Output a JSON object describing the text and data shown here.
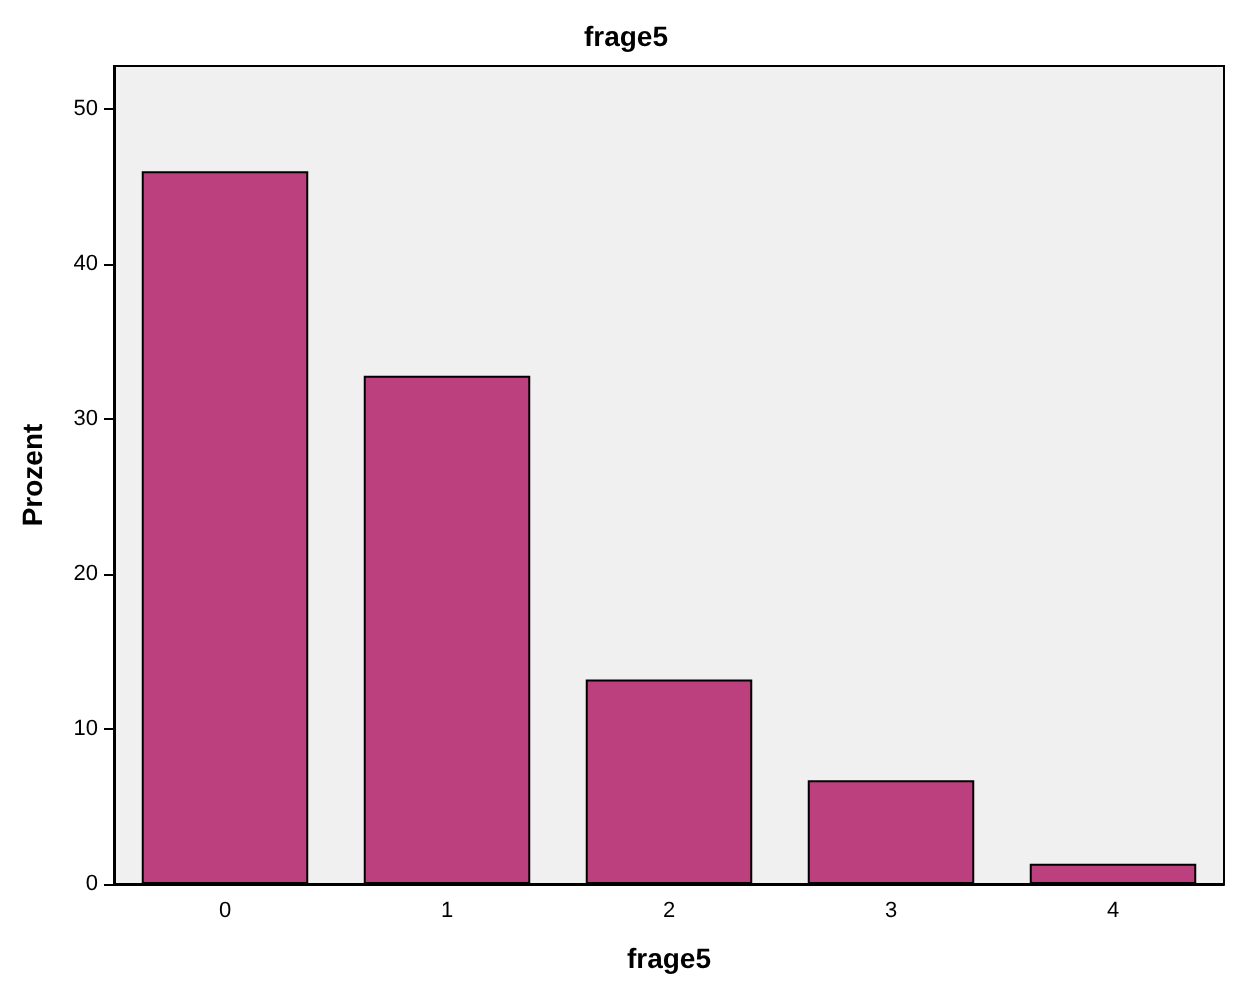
{
  "chart_data": {
    "type": "bar",
    "title": "frage5",
    "xlabel": "frage5",
    "ylabel": "Prozent",
    "categories": [
      "0",
      "1",
      "2",
      "3",
      "4"
    ],
    "values": [
      46.0,
      32.8,
      13.2,
      6.7,
      1.3
    ],
    "color": "#bc3f7e",
    "ylim": [
      0,
      52.8
    ],
    "yticks": [
      0,
      10,
      20,
      30,
      40,
      50
    ],
    "grid": false
  }
}
